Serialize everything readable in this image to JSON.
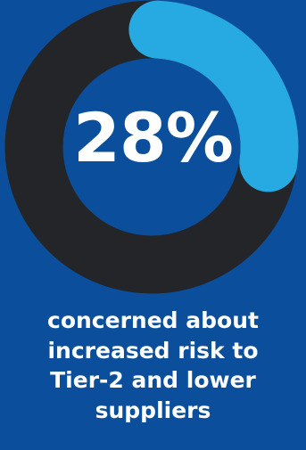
{
  "chart_data": {
    "type": "pie",
    "values": [
      28,
      72
    ],
    "percent_label": "28%",
    "caption": "concerned about increased risk to Tier-2 and lower suppliers",
    "colors": {
      "background": "#0b4f9c",
      "highlight": "#27a9e1",
      "remainder": "#232528",
      "text": "#ffffff"
    }
  }
}
